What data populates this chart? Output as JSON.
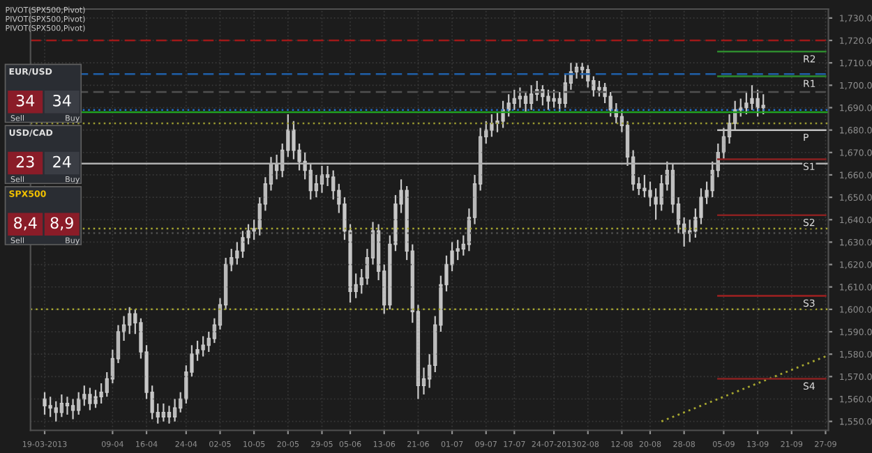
{
  "chart_data": {
    "type": "candlestick",
    "categories": [
      "19-03-2013",
      null,
      null,
      null,
      null,
      null,
      null,
      null,
      null,
      null,
      null,
      null,
      "09-04",
      null,
      null,
      null,
      null,
      null,
      "16-04",
      null,
      null,
      null,
      null,
      null,
      null,
      "24-04",
      null,
      null,
      null,
      null,
      null,
      "02-05",
      null,
      null,
      null,
      null,
      null,
      "10-05",
      null,
      null,
      null,
      null,
      null,
      "20-05",
      null,
      null,
      null,
      null,
      null,
      "29-05",
      null,
      null,
      null,
      null,
      "05-06",
      null,
      null,
      null,
      null,
      null,
      "13-06",
      null,
      null,
      null,
      null,
      null,
      "21-06",
      null,
      null,
      null,
      null,
      null,
      "01-07",
      null,
      null,
      null,
      null,
      null,
      "09-07",
      null,
      null,
      null,
      null,
      "17-07",
      null,
      null,
      null,
      null,
      null,
      null,
      "24-07-2013",
      null,
      null,
      null,
      null,
      null,
      "02-08",
      null,
      null,
      null,
      null,
      null,
      "12-08",
      null,
      null,
      null,
      null,
      "20-08",
      null,
      null,
      null,
      null,
      null,
      "28-08",
      null,
      null,
      null,
      null,
      null,
      null,
      "05-09",
      null,
      null,
      null,
      null,
      null,
      "13-09",
      null,
      null,
      null,
      null,
      null,
      "21-09",
      null,
      null,
      null,
      null,
      null,
      "27-09"
    ],
    "color": "#c8c8c8",
    "ohlc": [
      [
        1560,
        1563,
        1553,
        1557
      ],
      [
        1557,
        1561,
        1552,
        1556
      ],
      [
        1556,
        1559,
        1550,
        1554
      ],
      [
        1554,
        1562,
        1552,
        1558
      ],
      [
        1558,
        1561,
        1553,
        1557
      ],
      [
        1557,
        1560,
        1551,
        1555
      ],
      [
        1555,
        1563,
        1553,
        1560
      ],
      [
        1560,
        1566,
        1557,
        1562
      ],
      [
        1562,
        1565,
        1555,
        1558
      ],
      [
        1558,
        1564,
        1556,
        1561
      ],
      [
        1561,
        1567,
        1558,
        1563
      ],
      [
        1563,
        1572,
        1561,
        1569
      ],
      [
        1569,
        1582,
        1567,
        1578
      ],
      [
        1578,
        1593,
        1576,
        1590
      ],
      [
        1590,
        1597,
        1586,
        1593
      ],
      [
        1593,
        1601,
        1589,
        1598
      ],
      [
        1598,
        1600,
        1589,
        1594
      ],
      [
        1594,
        1596,
        1578,
        1581
      ],
      [
        1581,
        1584,
        1560,
        1563
      ],
      [
        1563,
        1566,
        1551,
        1554
      ],
      [
        1554,
        1558,
        1549,
        1552
      ],
      [
        1552,
        1558,
        1550,
        1554
      ],
      [
        1554,
        1557,
        1549,
        1552
      ],
      [
        1552,
        1560,
        1550,
        1556
      ],
      [
        1556,
        1563,
        1554,
        1560
      ],
      [
        1560,
        1575,
        1558,
        1572
      ],
      [
        1572,
        1584,
        1570,
        1580
      ],
      [
        1580,
        1586,
        1577,
        1582
      ],
      [
        1582,
        1588,
        1579,
        1584
      ],
      [
        1584,
        1590,
        1581,
        1587
      ],
      [
        1587,
        1596,
        1585,
        1593
      ],
      [
        1593,
        1605,
        1591,
        1602
      ],
      [
        1602,
        1623,
        1600,
        1620
      ],
      [
        1620,
        1627,
        1617,
        1623
      ],
      [
        1623,
        1630,
        1620,
        1626
      ],
      [
        1626,
        1635,
        1623,
        1632
      ],
      [
        1632,
        1638,
        1629,
        1635
      ],
      [
        1635,
        1640,
        1631,
        1636
      ],
      [
        1636,
        1650,
        1633,
        1647
      ],
      [
        1647,
        1659,
        1644,
        1656
      ],
      [
        1656,
        1668,
        1653,
        1665
      ],
      [
        1665,
        1669,
        1658,
        1662
      ],
      [
        1662,
        1674,
        1659,
        1671
      ],
      [
        1671,
        1687,
        1668,
        1680
      ],
      [
        1680,
        1684,
        1667,
        1671
      ],
      [
        1671,
        1674,
        1662,
        1666
      ],
      [
        1666,
        1670,
        1658,
        1662
      ],
      [
        1662,
        1665,
        1649,
        1653
      ],
      [
        1653,
        1660,
        1650,
        1656
      ],
      [
        1656,
        1664,
        1652,
        1660
      ],
      [
        1660,
        1664,
        1655,
        1659
      ],
      [
        1659,
        1662,
        1649,
        1653
      ],
      [
        1653,
        1656,
        1643,
        1647
      ],
      [
        1647,
        1650,
        1631,
        1635
      ],
      [
        1635,
        1638,
        1603,
        1608
      ],
      [
        1608,
        1616,
        1605,
        1611
      ],
      [
        1611,
        1618,
        1607,
        1614
      ],
      [
        1614,
        1627,
        1611,
        1623
      ],
      [
        1623,
        1639,
        1620,
        1635
      ],
      [
        1635,
        1638,
        1613,
        1617
      ],
      [
        1617,
        1620,
        1598,
        1602
      ],
      [
        1602,
        1633,
        1600,
        1629
      ],
      [
        1629,
        1651,
        1626,
        1647
      ],
      [
        1647,
        1658,
        1643,
        1653
      ],
      [
        1653,
        1655,
        1622,
        1626
      ],
      [
        1626,
        1629,
        1594,
        1599
      ],
      [
        1599,
        1602,
        1560,
        1566
      ],
      [
        1566,
        1574,
        1562,
        1569
      ],
      [
        1569,
        1580,
        1565,
        1575
      ],
      [
        1575,
        1597,
        1572,
        1593
      ],
      [
        1593,
        1615,
        1590,
        1611
      ],
      [
        1611,
        1624,
        1608,
        1620
      ],
      [
        1620,
        1630,
        1617,
        1626
      ],
      [
        1626,
        1631,
        1622,
        1627
      ],
      [
        1627,
        1633,
        1624,
        1629
      ],
      [
        1629,
        1645,
        1626,
        1641
      ],
      [
        1641,
        1660,
        1638,
        1656
      ],
      [
        1656,
        1681,
        1653,
        1677
      ],
      [
        1677,
        1684,
        1674,
        1680
      ],
      [
        1680,
        1687,
        1677,
        1683
      ],
      [
        1683,
        1688,
        1679,
        1684
      ],
      [
        1684,
        1693,
        1681,
        1689
      ],
      [
        1689,
        1696,
        1686,
        1692
      ],
      [
        1692,
        1698,
        1689,
        1694
      ],
      [
        1694,
        1699,
        1690,
        1695
      ],
      [
        1695,
        1697,
        1688,
        1692
      ],
      [
        1692,
        1700,
        1689,
        1696
      ],
      [
        1696,
        1702,
        1693,
        1698
      ],
      [
        1698,
        1700,
        1691,
        1695
      ],
      [
        1695,
        1698,
        1689,
        1693
      ],
      [
        1693,
        1698,
        1690,
        1694
      ],
      [
        1694,
        1697,
        1688,
        1692
      ],
      [
        1692,
        1705,
        1690,
        1701
      ],
      [
        1701,
        1710,
        1698,
        1706
      ],
      [
        1706,
        1710,
        1703,
        1708
      ],
      [
        1708,
        1710,
        1703,
        1707
      ],
      [
        1707,
        1709,
        1699,
        1702
      ],
      [
        1702,
        1704,
        1695,
        1698
      ],
      [
        1698,
        1702,
        1695,
        1699
      ],
      [
        1699,
        1701,
        1692,
        1695
      ],
      [
        1695,
        1697,
        1686,
        1689
      ],
      [
        1689,
        1692,
        1683,
        1686
      ],
      [
        1686,
        1689,
        1679,
        1682
      ],
      [
        1682,
        1684,
        1664,
        1668
      ],
      [
        1668,
        1671,
        1653,
        1656
      ],
      [
        1656,
        1659,
        1651,
        1654
      ],
      [
        1654,
        1660,
        1650,
        1653
      ],
      [
        1653,
        1657,
        1646,
        1650
      ],
      [
        1650,
        1654,
        1640,
        1647
      ],
      [
        1647,
        1660,
        1644,
        1656
      ],
      [
        1656,
        1666,
        1653,
        1662
      ],
      [
        1662,
        1665,
        1643,
        1647
      ],
      [
        1647,
        1650,
        1634,
        1638
      ],
      [
        1638,
        1641,
        1628,
        1634
      ],
      [
        1634,
        1640,
        1630,
        1635
      ],
      [
        1635,
        1645,
        1632,
        1641
      ],
      [
        1641,
        1654,
        1638,
        1650
      ],
      [
        1650,
        1657,
        1647,
        1653
      ],
      [
        1653,
        1666,
        1650,
        1662
      ],
      [
        1662,
        1674,
        1659,
        1670
      ],
      [
        1670,
        1681,
        1667,
        1677
      ],
      [
        1677,
        1687,
        1674,
        1683
      ],
      [
        1683,
        1693,
        1680,
        1689
      ],
      [
        1689,
        1694,
        1686,
        1690
      ],
      [
        1690,
        1697,
        1687,
        1692
      ],
      [
        1692,
        1700,
        1689,
        1694
      ],
      [
        1694,
        1698,
        1686,
        1690
      ],
      [
        1690,
        1696,
        1687,
        1691
      ],
      null,
      null,
      null,
      null,
      null,
      null,
      null,
      null,
      null,
      null,
      null
    ],
    "series": [
      {
        "type": "line",
        "color": "#a8a830",
        "line_style": "dotted",
        "values": [
          null,
          null,
          null,
          null,
          null,
          null,
          null,
          null,
          null,
          null,
          null,
          null,
          null,
          null,
          null,
          null,
          null,
          null,
          null,
          null,
          null,
          null,
          null,
          null,
          null,
          null,
          null,
          null,
          null,
          null,
          null,
          null,
          null,
          null,
          null,
          null,
          null,
          null,
          null,
          null,
          null,
          null,
          null,
          null,
          null,
          null,
          null,
          null,
          null,
          null,
          null,
          null,
          null,
          null,
          null,
          null,
          null,
          null,
          null,
          null,
          null,
          null,
          null,
          null,
          null,
          null,
          null,
          null,
          null,
          null,
          null,
          null,
          null,
          null,
          null,
          null,
          null,
          null,
          null,
          null,
          null,
          null,
          null,
          null,
          null,
          null,
          null,
          null,
          null,
          null,
          null,
          null,
          null,
          null,
          null,
          null,
          null,
          null,
          null,
          null,
          null,
          null,
          null,
          null,
          null,
          null,
          null,
          null,
          null,
          1550,
          null,
          null,
          null,
          null,
          null,
          null,
          null,
          null,
          null,
          null,
          null,
          null,
          null,
          null,
          null,
          null,
          null,
          null,
          null,
          null,
          null,
          null,
          null,
          null,
          null,
          null,
          null,
          null,
          1579
        ]
      }
    ],
    "ylim": [
      1546,
      1734
    ],
    "yticks": [
      {
        "value": 1550,
        "label": "1,550.0"
      },
      {
        "value": 1560,
        "label": "1,560.0"
      },
      {
        "value": 1570,
        "label": "1,570.0"
      },
      {
        "value": 1580,
        "label": "1,580.0"
      },
      {
        "value": 1590,
        "label": "1,590.0"
      },
      {
        "value": 1600,
        "label": "1,600.0"
      },
      {
        "value": 1610,
        "label": "1,610.0"
      },
      {
        "value": 1620,
        "label": "1,620.0"
      },
      {
        "value": 1630,
        "label": "1,630.0"
      },
      {
        "value": 1640,
        "label": "1,640.0"
      },
      {
        "value": 1650,
        "label": "1,650.0"
      },
      {
        "value": 1660,
        "label": "1,660.0"
      },
      {
        "value": 1670,
        "label": "1,670.0"
      },
      {
        "value": 1680,
        "label": "1,680.0"
      },
      {
        "value": 1690,
        "label": "1,690.0"
      },
      {
        "value": 1700,
        "label": "1,700.0"
      },
      {
        "value": 1710,
        "label": "1,710.0"
      },
      {
        "value": 1720,
        "label": "1,720.0"
      },
      {
        "value": 1730,
        "label": "1,730.0"
      }
    ],
    "grid": true,
    "legend": false,
    "ref_lines": [
      {
        "axis": "y",
        "value": 1720,
        "label": null,
        "color": "#a01818",
        "line_style": "dashed"
      },
      {
        "axis": "y",
        "value": 1705,
        "label": null,
        "color": "#1f5fa8",
        "line_style": "dashed"
      },
      {
        "axis": "y",
        "value": 1697,
        "label": null,
        "color": "#505050",
        "line_style": "dashed"
      },
      {
        "axis": "y",
        "value": 1689,
        "label": null,
        "color": "#1f6fd0",
        "line_style": "dotted"
      },
      {
        "axis": "y",
        "value": 1683,
        "label": null,
        "color": "#9a9a30",
        "line_style": "dotted"
      },
      {
        "axis": "y",
        "value": 1688,
        "label": null,
        "color": "#20a020",
        "line_style": "solid"
      },
      {
        "axis": "y",
        "value": 1665,
        "label": null,
        "color": "#b0b0b0",
        "line_style": "solid"
      },
      {
        "axis": "y",
        "value": 1636,
        "label": null,
        "color": "#a8a830",
        "line_style": "dotted"
      },
      {
        "axis": "y",
        "value": 1634,
        "label": null,
        "color": "#505050",
        "line_style": "dotted"
      },
      {
        "axis": "y",
        "value": 1600,
        "label": null,
        "color": "#a8a830",
        "line_style": "dotted"
      },
      {
        "axis": "y",
        "value": 1715,
        "label": "R2",
        "color": "#2e8b2e",
        "line_style": "solid"
      },
      {
        "axis": "y",
        "value": 1704,
        "label": "R1",
        "color": "#2e8b2e",
        "line_style": "solid"
      },
      {
        "axis": "y",
        "value": 1680,
        "label": "P",
        "color": "#c0c0c0",
        "line_style": "solid"
      },
      {
        "axis": "y",
        "value": 1667,
        "label": "S1",
        "color": "#8b2020",
        "line_style": "solid"
      },
      {
        "axis": "y",
        "value": 1642,
        "label": "S2",
        "color": "#8b2020",
        "line_style": "solid"
      },
      {
        "axis": "y",
        "value": 1606,
        "label": "S3",
        "color": "#a02020",
        "line_style": "solid"
      },
      {
        "axis": "y",
        "value": 1569,
        "label": "S4",
        "color": "#8b2020",
        "line_style": "solid"
      }
    ],
    "annotations": [
      "PIVOT(SPX500,Pivot)",
      "PIVOT(SPX500,Pivot)",
      "PIVOT(SPX500,Pivot)",
      "EUR/USD",
      "34",
      "34",
      "Sell",
      "Buy",
      "USD/CAD",
      "23",
      "24",
      "Sell",
      "Buy",
      "SPX500",
      "8,4",
      "8,9",
      "Sell",
      "Buy"
    ]
  }
}
